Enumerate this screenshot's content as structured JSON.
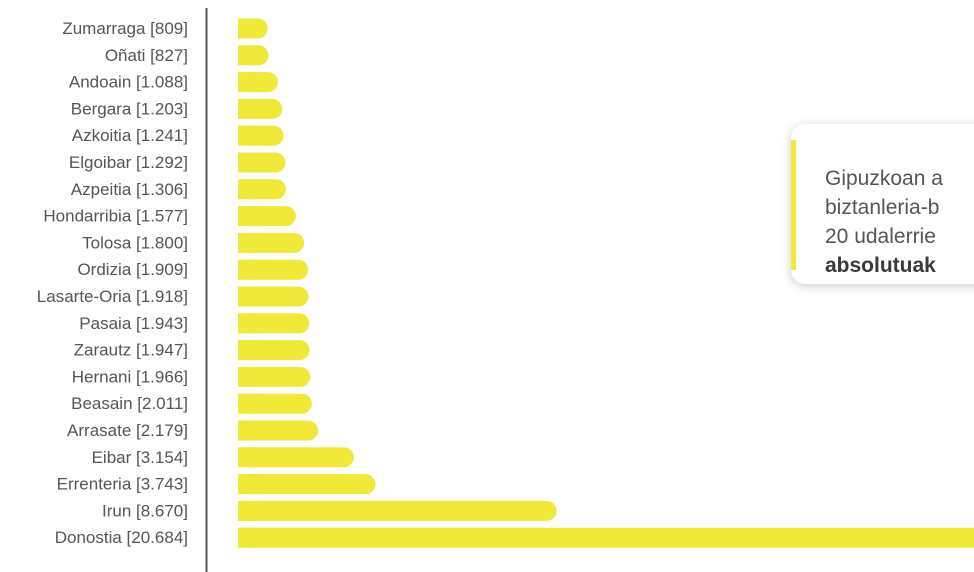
{
  "colors": {
    "bar": "#F0E93A",
    "axis": "#555555",
    "label": "#555555"
  },
  "callout": {
    "lines": [
      "Gipuzkoan a",
      "biztanleria-b",
      "20 udalerrie"
    ],
    "bold": "absolutuak"
  },
  "chart_data": {
    "type": "bar",
    "orientation": "horizontal",
    "categories": [
      "Zumarraga [809]",
      "Oñati [827]",
      "Andoain [1.088]",
      "Bergara [1.203]",
      "Azkoitia [1.241]",
      "Elgoibar [1.292]",
      "Azpeitia [1.306]",
      "Hondarribia [1.577]",
      "Tolosa [1.800]",
      "Ordizia [1.909]",
      "Lasarte-Oria [1.918]",
      "Pasaia [1.943]",
      "Zarautz [1.947]",
      "Hernani [1.966]",
      "Beasain [2.011]",
      "Arrasate [2.179]",
      "Eibar [3.154]",
      "Errenteria [3.743]",
      "Irun [8.670]",
      "Donostia [20.684]"
    ],
    "values": [
      809,
      827,
      1088,
      1203,
      1241,
      1292,
      1306,
      1577,
      1800,
      1909,
      1918,
      1943,
      1947,
      1966,
      2011,
      2179,
      3154,
      3743,
      8670,
      20684
    ],
    "grid": false,
    "legend": "none"
  }
}
